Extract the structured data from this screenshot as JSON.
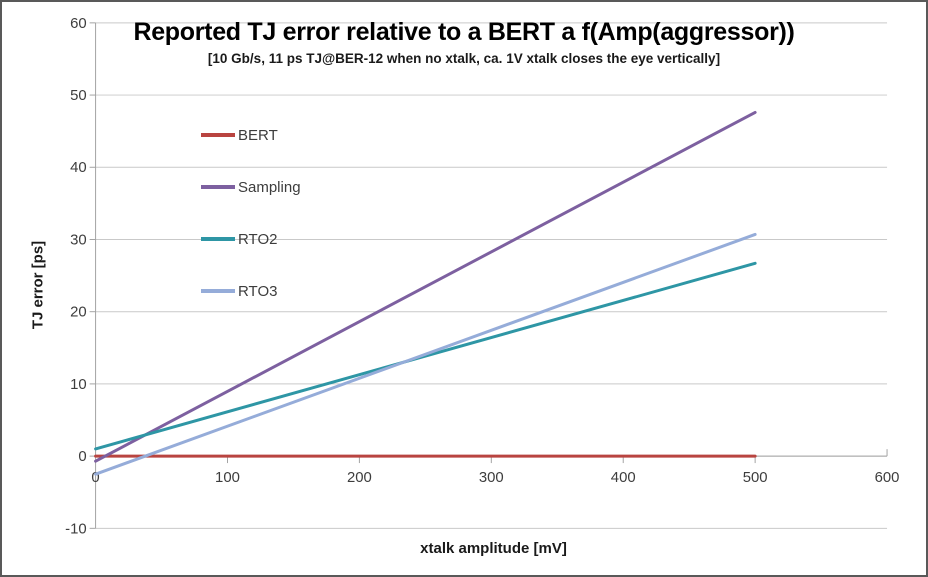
{
  "chart_data": {
    "type": "line",
    "title": "Reported TJ error relative to a BERT a f(Amp(aggressor))",
    "subtitle": "[10 Gb/s, 11 ps TJ@BER-12 when no xtalk, ca. 1V xtalk closes the eye vertically]",
    "xlabel": "xtalk amplitude [mV]",
    "ylabel": "TJ error [ps]",
    "xlim": [
      0,
      600
    ],
    "ylim": [
      -10,
      60
    ],
    "x_ticks": [
      0,
      100,
      200,
      300,
      400,
      500,
      600
    ],
    "y_ticks": [
      60,
      50,
      40,
      30,
      20,
      10,
      0,
      -10
    ],
    "grid": "horizontal-only",
    "legend_position": "inside-upper-left",
    "series": [
      {
        "name": "BERT",
        "color": "#b94440",
        "x": [
          0,
          500
        ],
        "y": [
          0.0,
          0.0
        ]
      },
      {
        "name": "Sampling",
        "color": "#7d60a0",
        "x": [
          0,
          500
        ],
        "y": [
          -0.7,
          47.6
        ]
      },
      {
        "name": "RTO2",
        "color": "#2e96a5",
        "x": [
          0,
          500
        ],
        "y": [
          1.0,
          26.7
        ]
      },
      {
        "name": "RTO3",
        "color": "#95acd9",
        "x": [
          0,
          500
        ],
        "y": [
          -2.5,
          30.7
        ]
      }
    ],
    "colors": {
      "gridline": "#c9c9c9",
      "axis": "#a3a3a3",
      "tick_text": "#3d3d3d"
    }
  }
}
